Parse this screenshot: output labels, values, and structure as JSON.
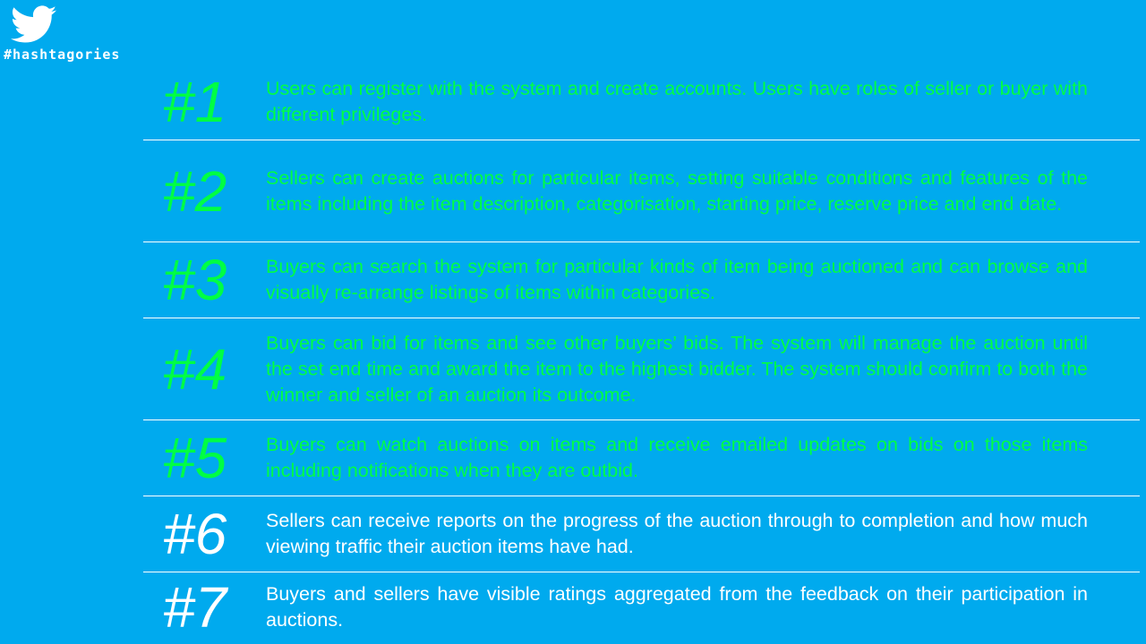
{
  "brand": {
    "hashtag": "#hashtagories"
  },
  "items": [
    {
      "number": "#1",
      "text": "Users can register with the system and create accounts. Users have roles of seller or buyer with different privileges."
    },
    {
      "number": "#2",
      "text": "Sellers can create auctions for particular items, setting suitable conditions and features of the items including the item description, categorisation, starting price, reserve price and end date."
    },
    {
      "number": "#3",
      "text": "Buyers can search the system for particular kinds of item being auctioned and can browse and visually re-arrange listings of items within categories."
    },
    {
      "number": "#4",
      "text": "Buyers can bid for items and see other buyers’ bids. The system will manage the auction until the set end time and award the item to the highest bidder. The system should confirm to both the winner and seller of an auction its outcome."
    },
    {
      "number": "#5",
      "text": "Buyers can watch auctions on items and receive emailed updates on bids on those items including notifications when they are outbid."
    },
    {
      "number": "#6",
      "text": "Sellers can receive reports on the progress of the auction through to completion and how much viewing traffic their auction items have had."
    },
    {
      "number": "#7",
      "text": "Buyers and sellers have visible ratings aggregated from the feedback on their participation in auctions."
    }
  ],
  "colors": {
    "background": "#00AAEE",
    "highlight": "#00FF44",
    "default": "#FFFFFF"
  }
}
